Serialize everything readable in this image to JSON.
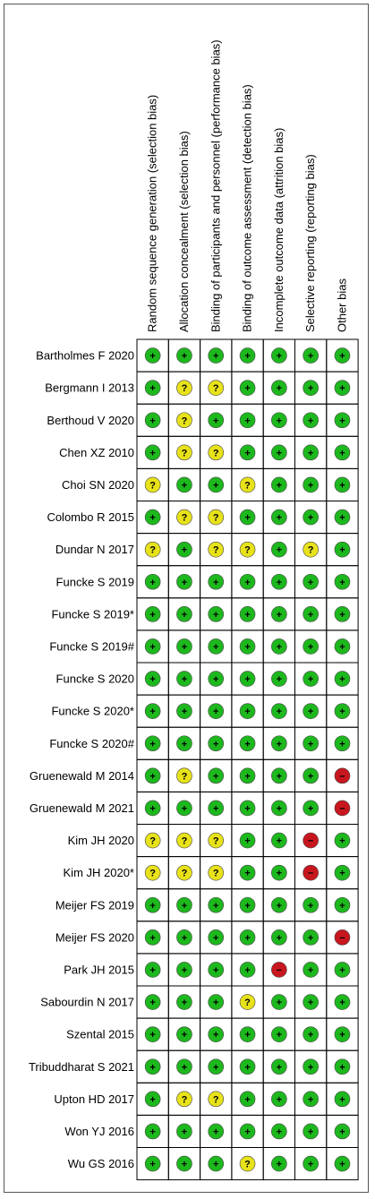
{
  "chart_data": {
    "type": "table",
    "title": "",
    "columns": [
      "Random sequence generation (selection bias)",
      "Allocation concealment (selection bias)",
      "Binding of participants and personnel (performance bias)",
      "Binding of outcome assessment (detection bias)",
      "Incomplete outcome data (attrition bias)",
      "Selective reporting (reporting bias)",
      "Other bias"
    ],
    "rows": [
      {
        "study": "Bartholmes F 2020",
        "ratings": [
          "+",
          "+",
          "+",
          "+",
          "+",
          "+",
          "+"
        ]
      },
      {
        "study": "Bergmann I 2013",
        "ratings": [
          "+",
          "?",
          "?",
          "+",
          "+",
          "+",
          "+"
        ]
      },
      {
        "study": "Berthoud V 2020",
        "ratings": [
          "+",
          "?",
          "+",
          "+",
          "+",
          "+",
          "+"
        ]
      },
      {
        "study": "Chen XZ 2010",
        "ratings": [
          "+",
          "?",
          "?",
          "+",
          "+",
          "+",
          "+"
        ]
      },
      {
        "study": "Choi SN 2020",
        "ratings": [
          "?",
          "+",
          "+",
          "?",
          "+",
          "+",
          "+"
        ]
      },
      {
        "study": "Colombo R 2015",
        "ratings": [
          "+",
          "?",
          "?",
          "+",
          "+",
          "+",
          "+"
        ]
      },
      {
        "study": "Dundar N 2017",
        "ratings": [
          "?",
          "+",
          "?",
          "?",
          "+",
          "?",
          "+"
        ]
      },
      {
        "study": "Funcke S 2019",
        "ratings": [
          "+",
          "+",
          "+",
          "+",
          "+",
          "+",
          "+"
        ]
      },
      {
        "study": "Funcke S 2019*",
        "ratings": [
          "+",
          "+",
          "+",
          "+",
          "+",
          "+",
          "+"
        ]
      },
      {
        "study": "Funcke S 2019#",
        "ratings": [
          "+",
          "+",
          "+",
          "+",
          "+",
          "+",
          "+"
        ]
      },
      {
        "study": "Funcke S 2020",
        "ratings": [
          "+",
          "+",
          "+",
          "+",
          "+",
          "+",
          "+"
        ]
      },
      {
        "study": "Funcke S 2020*",
        "ratings": [
          "+",
          "+",
          "+",
          "+",
          "+",
          "+",
          "+"
        ]
      },
      {
        "study": "Funcke S 2020#",
        "ratings": [
          "+",
          "+",
          "+",
          "+",
          "+",
          "+",
          "+"
        ]
      },
      {
        "study": "Gruenewald M 2014",
        "ratings": [
          "+",
          "?",
          "+",
          "+",
          "+",
          "+",
          "-"
        ]
      },
      {
        "study": "Gruenewald M 2021",
        "ratings": [
          "+",
          "+",
          "+",
          "+",
          "+",
          "+",
          "-"
        ]
      },
      {
        "study": "Kim JH 2020",
        "ratings": [
          "?",
          "?",
          "?",
          "+",
          "+",
          "-",
          "+"
        ]
      },
      {
        "study": "Kim JH 2020*",
        "ratings": [
          "?",
          "?",
          "?",
          "+",
          "+",
          "-",
          "+"
        ]
      },
      {
        "study": "Meijer FS 2019",
        "ratings": [
          "+",
          "+",
          "+",
          "+",
          "+",
          "+",
          "+"
        ]
      },
      {
        "study": "Meijer FS 2020",
        "ratings": [
          "+",
          "+",
          "+",
          "+",
          "+",
          "+",
          "-"
        ]
      },
      {
        "study": "Park JH 2015",
        "ratings": [
          "+",
          "+",
          "+",
          "+",
          "-",
          "+",
          "+"
        ]
      },
      {
        "study": "Sabourdin N 2017",
        "ratings": [
          "+",
          "+",
          "+",
          "?",
          "+",
          "+",
          "+"
        ]
      },
      {
        "study": "Szental 2015",
        "ratings": [
          "+",
          "+",
          "+",
          "+",
          "+",
          "+",
          "+"
        ]
      },
      {
        "study": "Tribuddharat S 2021",
        "ratings": [
          "+",
          "+",
          "+",
          "+",
          "+",
          "+",
          "+"
        ]
      },
      {
        "study": "Upton HD 2017",
        "ratings": [
          "+",
          "?",
          "?",
          "+",
          "+",
          "+",
          "+"
        ]
      },
      {
        "study": "Won YJ 2016",
        "ratings": [
          "+",
          "+",
          "+",
          "+",
          "+",
          "+",
          "+"
        ]
      },
      {
        "study": "Wu GS 2016",
        "ratings": [
          "+",
          "+",
          "+",
          "?",
          "+",
          "+",
          "+"
        ]
      }
    ],
    "symbol_colors": {
      "+": "#1db81d",
      "?": "#e8e21a",
      "-": "#c8161e"
    },
    "symbol_text": {
      "+": "+",
      "?": "?",
      "-": "−"
    },
    "legend": "none",
    "grid": true
  }
}
